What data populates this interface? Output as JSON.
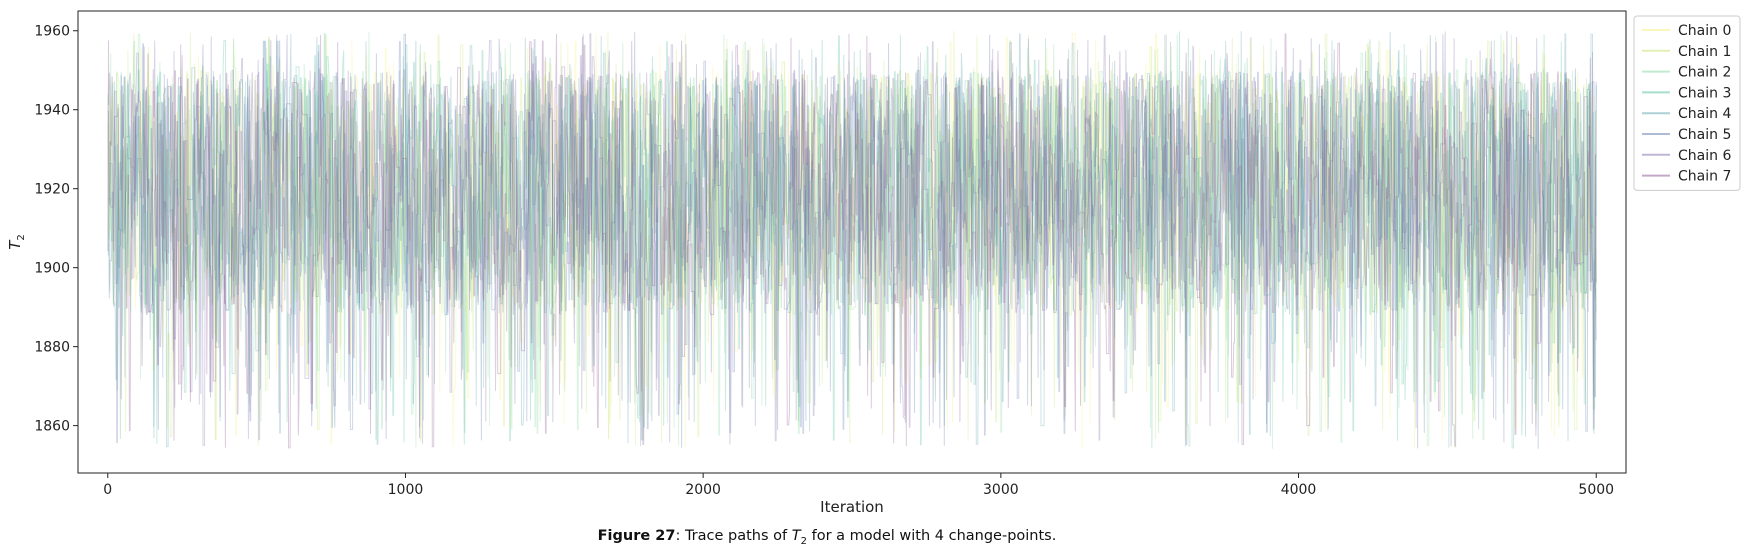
{
  "chart_data": {
    "type": "line",
    "title": "",
    "xlabel": "Iteration",
    "ylabel": "T",
    "ylabel_subscript": "2",
    "xlim": [
      -100,
      5100
    ],
    "ylim": [
      1848,
      1965
    ],
    "xticks": [
      0,
      1000,
      2000,
      3000,
      4000,
      5000
    ],
    "yticks": [
      1860,
      1880,
      1900,
      1920,
      1940,
      1960
    ],
    "grid": false,
    "legend_position": "outside-top-right",
    "series": [
      {
        "name": "Chain 0",
        "color": "#f5ee7a"
      },
      {
        "name": "Chain 1",
        "color": "#c4e46a"
      },
      {
        "name": "Chain 2",
        "color": "#86d6a0"
      },
      {
        "name": "Chain 3",
        "color": "#4fbe9a"
      },
      {
        "name": "Chain 4",
        "color": "#5b9fb0"
      },
      {
        "name": "Chain 5",
        "color": "#5e78b0"
      },
      {
        "name": "Chain 6",
        "color": "#7f6ea8"
      },
      {
        "name": "Chain 7",
        "color": "#87508f"
      }
    ],
    "iterations": 5000,
    "value_range": [
      1854,
      1960
    ]
  },
  "caption": {
    "figure_label": "Figure 27",
    "text_before": ": Trace paths of ",
    "symbol": "T",
    "symbol_subscript": "2",
    "text_after": " for a model with 4 change-points."
  }
}
